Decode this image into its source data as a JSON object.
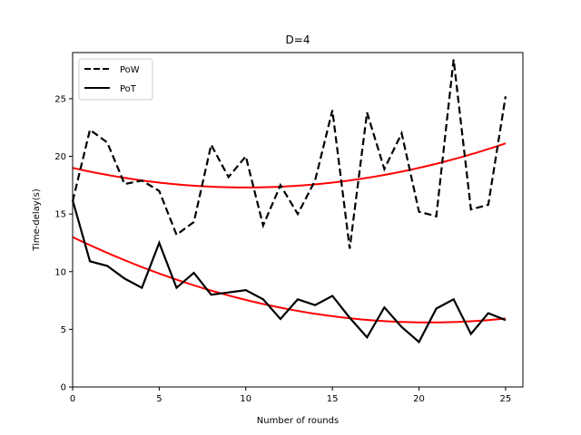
{
  "chart_data": {
    "type": "line",
    "title": "D=4",
    "xlabel": "Number of rounds",
    "ylabel": "Time-delay(s)",
    "xlim": [
      0,
      26
    ],
    "ylim": [
      0,
      29
    ],
    "xticks": [
      0,
      5,
      10,
      15,
      20,
      25
    ],
    "yticks": [
      0,
      5,
      10,
      15,
      20,
      25
    ],
    "grid": false,
    "legend_position": "top-left",
    "series": [
      {
        "name": "PoW",
        "style": "dashed",
        "color": "#000000",
        "x": [
          0,
          1,
          2,
          3,
          4,
          5,
          6,
          7,
          8,
          9,
          10,
          11,
          12,
          13,
          14,
          15,
          16,
          17,
          18,
          19,
          20,
          21,
          22,
          23,
          24,
          25
        ],
        "values": [
          16.1,
          22.3,
          21.2,
          17.6,
          17.9,
          17.0,
          13.2,
          14.3,
          21.0,
          18.2,
          20.0,
          14.0,
          17.5,
          15.0,
          17.9,
          24.0,
          12.0,
          23.8,
          18.9,
          22.0,
          15.2,
          14.8,
          28.4,
          15.4,
          15.8,
          25.2
        ]
      },
      {
        "name": "PoT",
        "style": "solid",
        "color": "#000000",
        "x": [
          0,
          1,
          2,
          3,
          4,
          5,
          6,
          7,
          8,
          9,
          10,
          11,
          12,
          13,
          14,
          15,
          16,
          17,
          18,
          19,
          20,
          21,
          22,
          23,
          24,
          25
        ],
        "values": [
          16.2,
          10.9,
          10.5,
          9.4,
          8.6,
          12.5,
          8.6,
          9.9,
          8.0,
          8.2,
          8.4,
          7.6,
          5.9,
          7.6,
          7.1,
          7.9,
          6.0,
          4.3,
          6.9,
          5.2,
          3.9,
          6.8,
          7.6,
          4.6,
          6.4,
          5.8
        ]
      }
    ],
    "trend_lines": [
      {
        "color": "#ff0000",
        "fit": "quadratic",
        "coefficients": [
          19.0,
          -0.34,
          0.017
        ]
      },
      {
        "color": "#ff0000",
        "fit": "quadratic",
        "coefficients": [
          13.0,
          -0.72,
          0.0175
        ]
      }
    ]
  }
}
